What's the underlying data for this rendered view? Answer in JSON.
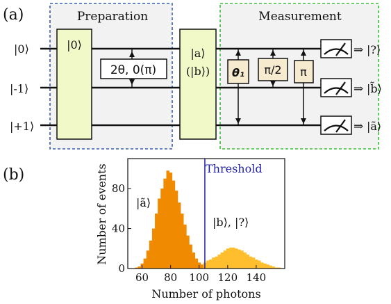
{
  "panel_a": {
    "panel_label": "(a)",
    "prep_title": "Preparation",
    "meas_title": "Measurement",
    "qubits": [
      "|0⟩",
      "|-1⟩",
      "|+1⟩"
    ],
    "init_gate": "|0⟩",
    "rotation_gate": "2θ, 0(π)",
    "state_gate_line1": "|a⟩",
    "state_gate_line2": "(|b⟩)",
    "meas_gates": [
      "θ₁",
      "π/2",
      "π"
    ],
    "outputs": [
      "|?⟩",
      "|b̃⟩",
      "|ã⟩"
    ],
    "arrow": "⇒",
    "colors": {
      "prep_border": "#3a5fb0",
      "meas_border": "#3bbf3b",
      "gate_fill": "#f2f9c8",
      "meas_gate_fill": "#f6ebcf",
      "panel_fill": "#f2f2f2"
    }
  },
  "panel_b": {
    "panel_label": "(b)",
    "threshold_label": "Threshold",
    "left_label": "|ã⟩",
    "right_label": "|b⟩, |?⟩",
    "colors": {
      "left": "#f08a00",
      "right": "#ffbe2e",
      "threshold": "#1f1fa6"
    }
  },
  "chart_data": {
    "type": "bar",
    "xlabel": "Number of photons",
    "ylabel": "Number of events",
    "xticks": [
      60,
      80,
      100,
      120,
      140
    ],
    "yticks": [
      0,
      40,
      80
    ],
    "xlim": [
      50,
      160
    ],
    "ylim": [
      0,
      110
    ],
    "threshold": 104,
    "series": [
      {
        "x": [
          56,
          58,
          60,
          62,
          64,
          66,
          68,
          70,
          72,
          74,
          76,
          78,
          80,
          82,
          84,
          86,
          88,
          90,
          92,
          94,
          96,
          98,
          100,
          102
        ],
        "values": [
          1,
          2,
          5,
          10,
          18,
          28,
          40,
          55,
          70,
          80,
          90,
          98,
          96,
          88,
          78,
          66,
          55,
          44,
          33,
          24,
          16,
          10,
          6,
          4
        ]
      },
      {
        "x": [
          104,
          106,
          108,
          110,
          112,
          114,
          116,
          118,
          120,
          122,
          124,
          126,
          128,
          130,
          132,
          134,
          136,
          138,
          140,
          142,
          144,
          146,
          148,
          150,
          152,
          154,
          156
        ],
        "values": [
          6,
          8,
          9,
          11,
          12,
          14,
          16,
          18,
          20,
          21,
          21,
          20,
          19,
          18,
          16,
          14,
          12,
          11,
          9,
          8,
          6,
          5,
          4,
          3,
          2,
          1,
          1
        ]
      }
    ]
  }
}
